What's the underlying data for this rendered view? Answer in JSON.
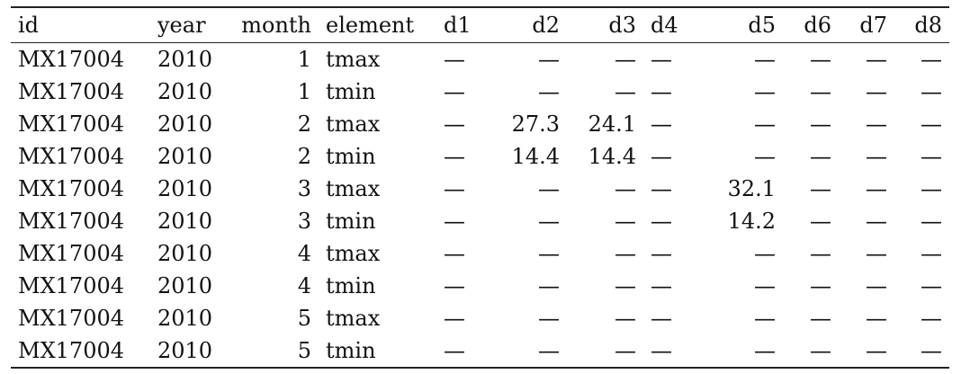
{
  "table": {
    "columns": [
      {
        "label": "id",
        "align": "l"
      },
      {
        "label": "year",
        "align": "l"
      },
      {
        "label": "month",
        "align": "r"
      },
      {
        "label": "element",
        "align": "l"
      },
      {
        "label": "d1",
        "align": "l"
      },
      {
        "label": "d2",
        "align": "r"
      },
      {
        "label": "d3",
        "align": "r"
      },
      {
        "label": "d4",
        "align": "l"
      },
      {
        "label": "d5",
        "align": "r"
      },
      {
        "label": "d6",
        "align": "r"
      },
      {
        "label": "d7",
        "align": "r"
      },
      {
        "label": "d8",
        "align": "r"
      }
    ],
    "rows": [
      [
        "MX17004",
        "2010",
        "1",
        "tmax",
        "—",
        "—",
        "—",
        "—",
        "—",
        "—",
        "—",
        "—"
      ],
      [
        "MX17004",
        "2010",
        "1",
        "tmin",
        "—",
        "—",
        "—",
        "—",
        "—",
        "—",
        "—",
        "—"
      ],
      [
        "MX17004",
        "2010",
        "2",
        "tmax",
        "—",
        "27.3",
        "24.1",
        "—",
        "—",
        "—",
        "—",
        "—"
      ],
      [
        "MX17004",
        "2010",
        "2",
        "tmin",
        "—",
        "14.4",
        "14.4",
        "—",
        "—",
        "—",
        "—",
        "—"
      ],
      [
        "MX17004",
        "2010",
        "3",
        "tmax",
        "—",
        "—",
        "—",
        "—",
        "32.1",
        "—",
        "—",
        "—"
      ],
      [
        "MX17004",
        "2010",
        "3",
        "tmin",
        "—",
        "—",
        "—",
        "—",
        "14.2",
        "—",
        "—",
        "—"
      ],
      [
        "MX17004",
        "2010",
        "4",
        "tmax",
        "—",
        "—",
        "—",
        "—",
        "—",
        "—",
        "—",
        "—"
      ],
      [
        "MX17004",
        "2010",
        "4",
        "tmin",
        "—",
        "—",
        "—",
        "—",
        "—",
        "—",
        "—",
        "—"
      ],
      [
        "MX17004",
        "2010",
        "5",
        "tmax",
        "—",
        "—",
        "—",
        "—",
        "—",
        "—",
        "—",
        "—"
      ],
      [
        "MX17004",
        "2010",
        "5",
        "tmin",
        "—",
        "—",
        "—",
        "—",
        "—",
        "—",
        "—",
        "—"
      ]
    ]
  }
}
